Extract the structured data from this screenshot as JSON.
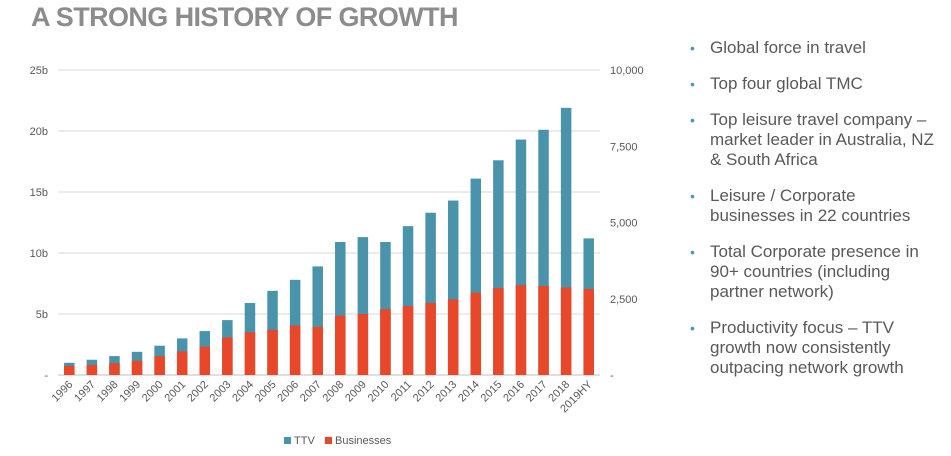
{
  "page": {
    "title": "A STRONG HISTORY OF GROWTH"
  },
  "bullets": [
    "Global force in travel",
    "Top four global TMC",
    "Top leisure travel company – market leader in Australia, NZ & South Africa",
    "Leisure / Corporate businesses in 22 countries",
    "Total Corporate presence in 90+ countries (including partner network)",
    "Productivity focus – TTV growth now consistently outpacing network growth"
  ],
  "bullet_icon": "bullet-dot-icon",
  "colors": {
    "ttv": "#4a94ab",
    "businesses": "#e8472a",
    "text": "#595959",
    "title": "#8c8c8c"
  },
  "chart_data": {
    "type": "bar",
    "stacked": false,
    "overlay": true,
    "categories": [
      "1996",
      "1997",
      "1998",
      "1999",
      "2000",
      "2001",
      "2002",
      "2003",
      "2004",
      "2005",
      "2006",
      "2007",
      "2008",
      "2009",
      "2010",
      "2011",
      "2012",
      "2013",
      "2014",
      "2015",
      "2016",
      "2017",
      "2018",
      "2019HY"
    ],
    "series": [
      {
        "name": "TTV",
        "axis": "left",
        "color": "#4a94ab",
        "values": [
          1.0,
          1.25,
          1.55,
          1.9,
          2.4,
          3.0,
          3.6,
          4.5,
          5.9,
          6.9,
          7.8,
          8.9,
          10.9,
          11.3,
          10.9,
          12.2,
          13.3,
          14.3,
          16.1,
          17.6,
          19.3,
          20.1,
          21.9,
          11.2
        ]
      },
      {
        "name": "Businesses",
        "axis": "right",
        "color": "#e8472a",
        "values": [
          300,
          330,
          390,
          470,
          620,
          770,
          930,
          1230,
          1400,
          1480,
          1620,
          1580,
          1950,
          2000,
          2160,
          2260,
          2360,
          2480,
          2700,
          2850,
          2950,
          2920,
          2870,
          2820
        ]
      }
    ],
    "y_left": {
      "ylim": [
        0,
        25
      ],
      "ticks": [
        "-",
        "5b",
        "10b",
        "15b",
        "20b",
        "25b"
      ],
      "tick_values": [
        0,
        5,
        10,
        15,
        20,
        25
      ]
    },
    "y_right": {
      "ylim": [
        0,
        10000
      ],
      "ticks": [
        "-",
        "2,500",
        "5,000",
        "7,500",
        "10,000"
      ],
      "tick_values": [
        0,
        2500,
        5000,
        7500,
        10000
      ]
    },
    "grid": true,
    "legend_position": "bottom-center",
    "title": "",
    "xlabel": "",
    "ylabel": ""
  }
}
